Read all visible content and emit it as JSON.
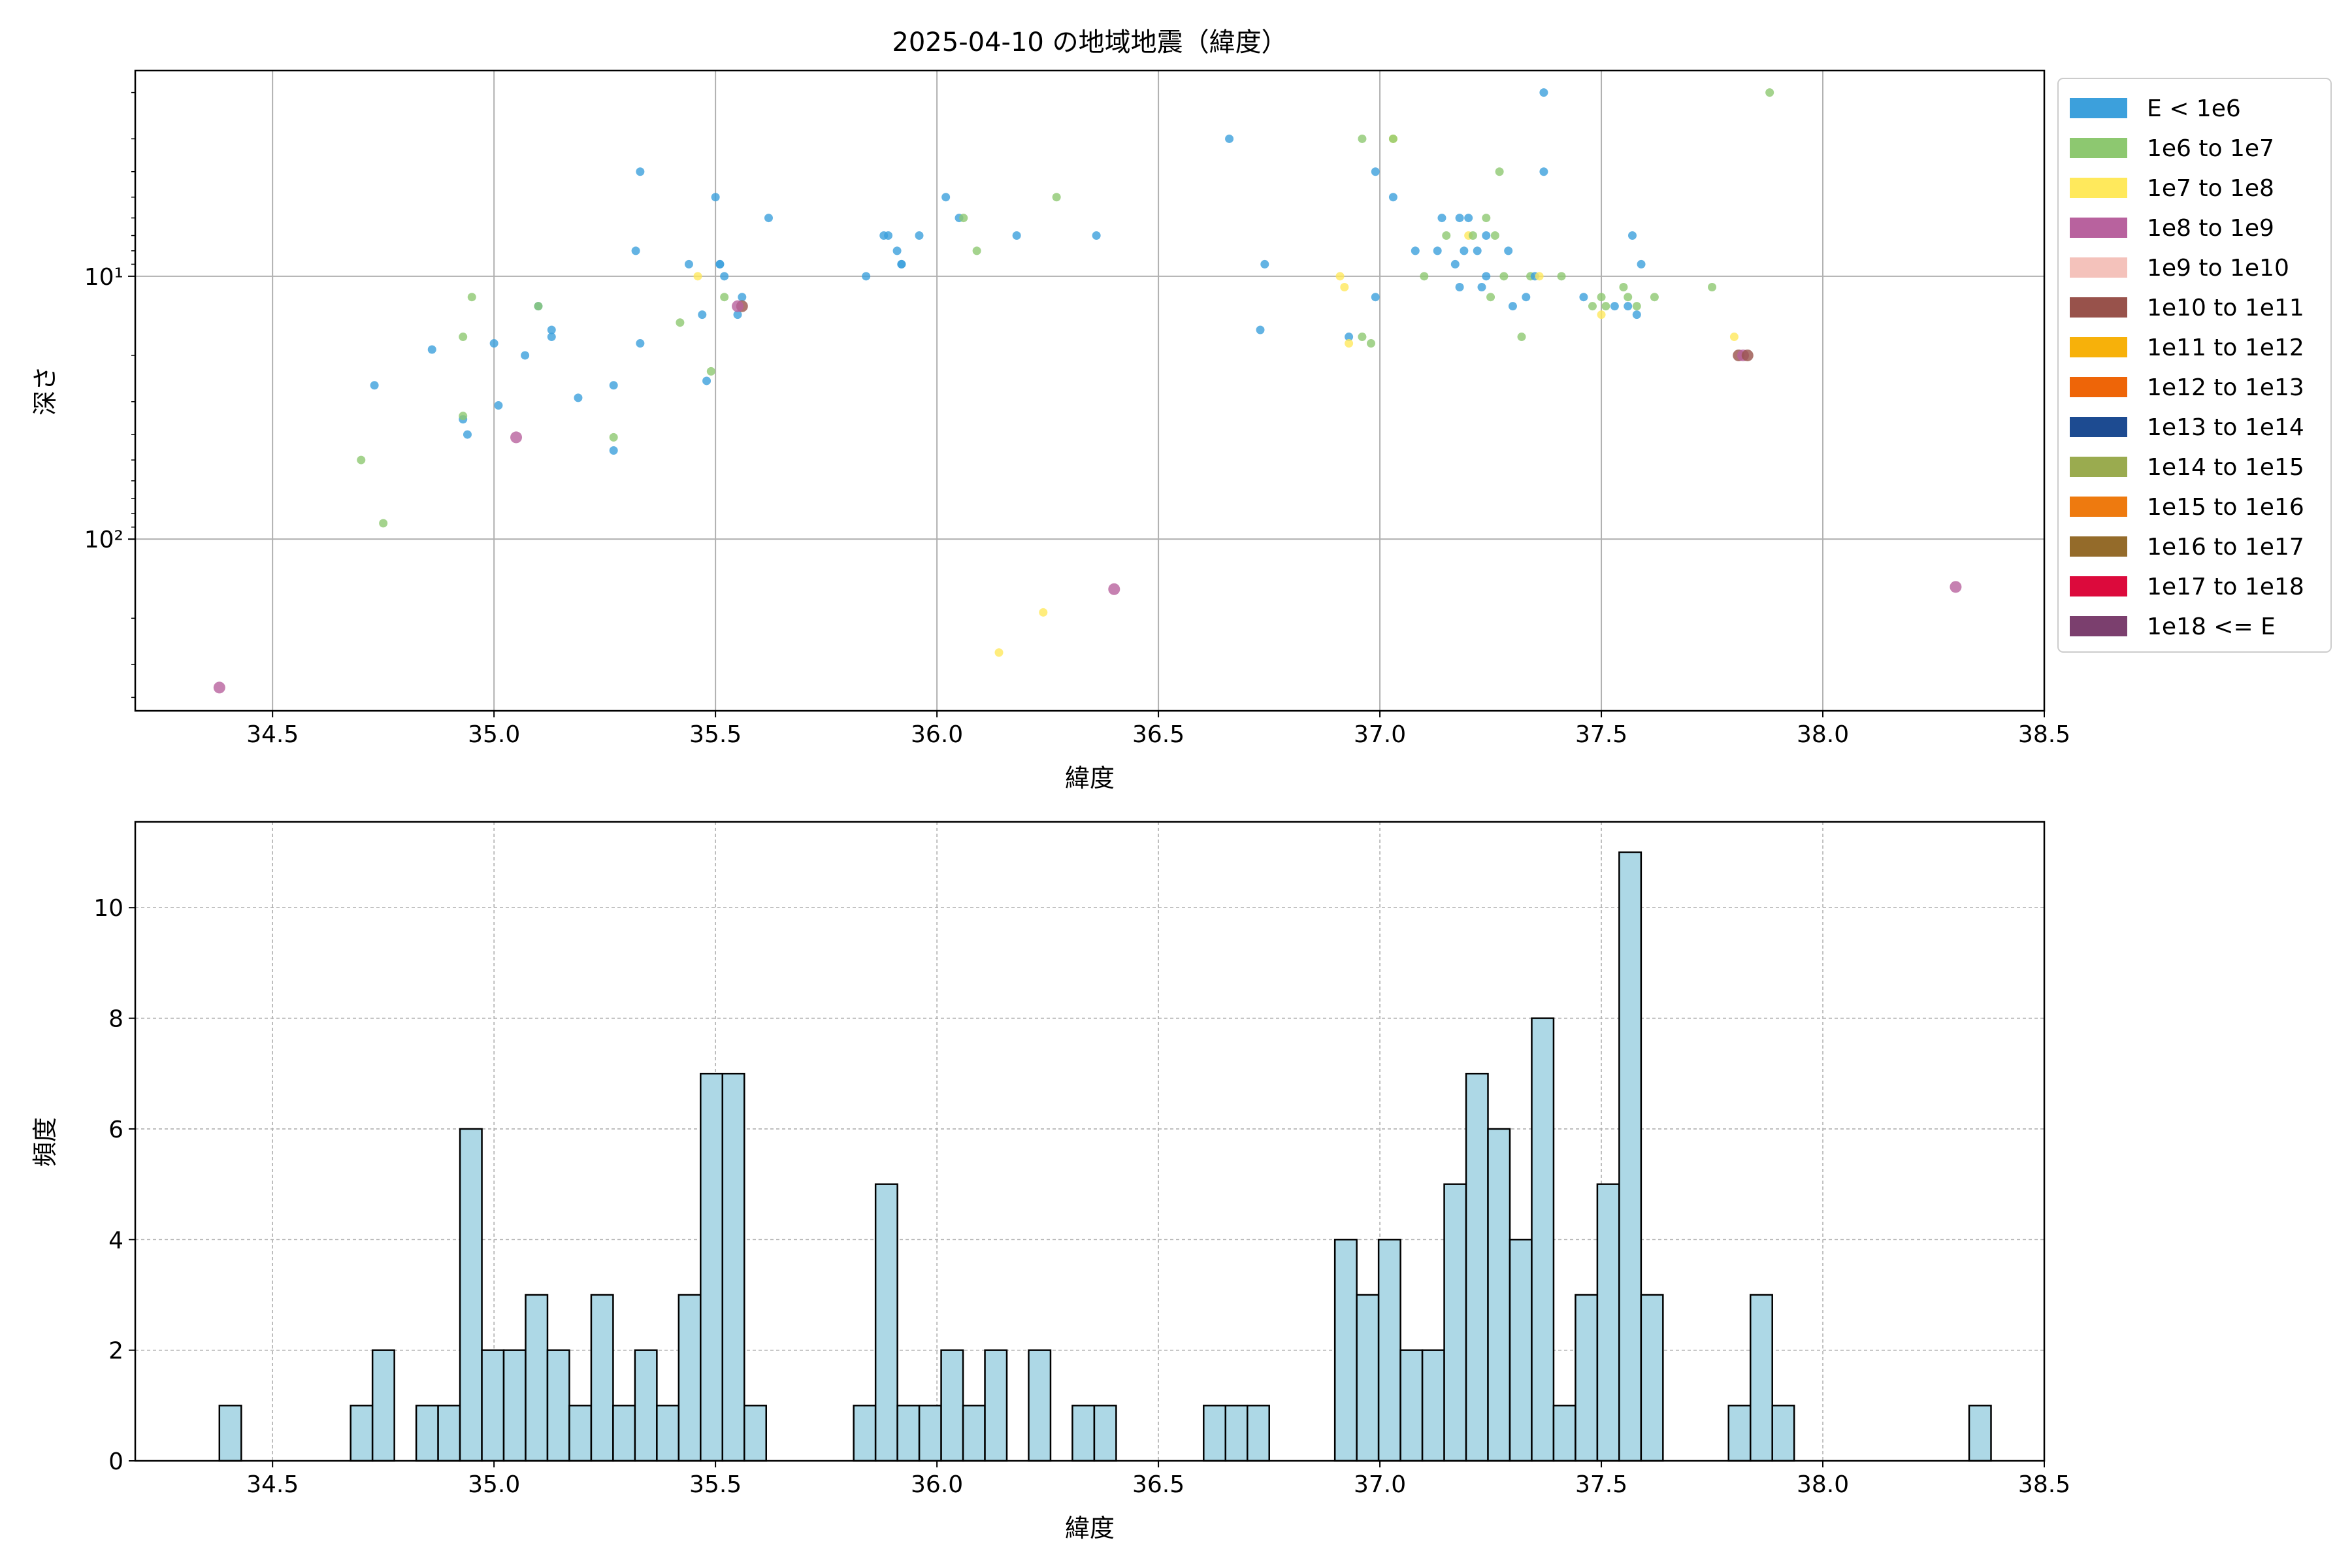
{
  "chart_data": [
    {
      "type": "scatter",
      "title": "2025-04-10 の地域地震（緯度）",
      "xlabel": "緯度",
      "ylabel": "深さ",
      "xlim": [
        34.19,
        38.5
      ],
      "ylim": [
        450,
        1.65
      ],
      "yscale": "log-inverted",
      "grid": true,
      "legend_placement": "outside-right",
      "x_ticks": [
        "34.5",
        "35.0",
        "35.5",
        "36.0",
        "36.5",
        "37.0",
        "37.5",
        "38.0",
        "38.5"
      ],
      "x_tick_values": [
        34.5,
        35.0,
        35.5,
        36.0,
        36.5,
        37.0,
        37.5,
        38.0,
        38.5
      ],
      "y_ticks": [
        {
          "value": 10,
          "label": "10¹"
        },
        {
          "value": 100,
          "label": "10²"
        }
      ],
      "legend": [
        {
          "label": "E < 1e6",
          "color": "#3ca0dc"
        },
        {
          "label": "1e6 to 1e7",
          "color": "#8dc870"
        },
        {
          "label": "1e7 to 1e8",
          "color": "#ffe95c"
        },
        {
          "label": "1e8 to 1e9",
          "color": "#b8629e"
        },
        {
          "label": "1e9 to 1e10",
          "color": "#f4c2bb"
        },
        {
          "label": "1e10 to 1e11",
          "color": "#98524b"
        },
        {
          "label": "1e11 to 1e12",
          "color": "#f7b10a"
        },
        {
          "label": "1e12 to 1e13",
          "color": "#ee6508"
        },
        {
          "label": "1e13 to 1e14",
          "color": "#1d4b91"
        },
        {
          "label": "1e14 to 1e15",
          "color": "#9aab4f"
        },
        {
          "label": "1e15 to 1e16",
          "color": "#ee7a0f"
        },
        {
          "label": "1e16 to 1e17",
          "color": "#946b2a"
        },
        {
          "label": "1e17 to 1e18",
          "color": "#dc0a3c"
        },
        {
          "label": "1e18 <= E",
          "color": "#7b3f6e"
        }
      ],
      "points": [
        {
          "x": 34.38,
          "y": 367,
          "c": 3
        },
        {
          "x": 34.7,
          "y": 50,
          "c": 1
        },
        {
          "x": 34.73,
          "y": 26,
          "c": 0
        },
        {
          "x": 34.75,
          "y": 87,
          "c": 1
        },
        {
          "x": 34.86,
          "y": 19,
          "c": 0
        },
        {
          "x": 34.93,
          "y": 17,
          "c": 1
        },
        {
          "x": 34.93,
          "y": 35,
          "c": 0
        },
        {
          "x": 34.93,
          "y": 34,
          "c": 1
        },
        {
          "x": 34.94,
          "y": 40,
          "c": 0
        },
        {
          "x": 34.95,
          "y": 12,
          "c": 1
        },
        {
          "x": 35.0,
          "y": 18,
          "c": 0
        },
        {
          "x": 35.01,
          "y": 31,
          "c": 0
        },
        {
          "x": 35.05,
          "y": 41,
          "c": 3
        },
        {
          "x": 35.07,
          "y": 20,
          "c": 0
        },
        {
          "x": 35.1,
          "y": 13,
          "c": 0
        },
        {
          "x": 35.1,
          "y": 13,
          "c": 1
        },
        {
          "x": 35.13,
          "y": 16,
          "c": 0
        },
        {
          "x": 35.13,
          "y": 17,
          "c": 0
        },
        {
          "x": 35.19,
          "y": 29,
          "c": 0
        },
        {
          "x": 35.27,
          "y": 26,
          "c": 0
        },
        {
          "x": 35.27,
          "y": 41,
          "c": 1
        },
        {
          "x": 35.27,
          "y": 46,
          "c": 0
        },
        {
          "x": 35.32,
          "y": 8,
          "c": 0
        },
        {
          "x": 35.33,
          "y": 4,
          "c": 0
        },
        {
          "x": 35.33,
          "y": 18,
          "c": 0
        },
        {
          "x": 35.42,
          "y": 15,
          "c": 1
        },
        {
          "x": 35.44,
          "y": 9,
          "c": 0
        },
        {
          "x": 35.46,
          "y": 10,
          "c": 2
        },
        {
          "x": 35.47,
          "y": 14,
          "c": 0
        },
        {
          "x": 35.48,
          "y": 25,
          "c": 0
        },
        {
          "x": 35.49,
          "y": 23,
          "c": 1
        },
        {
          "x": 35.5,
          "y": 5,
          "c": 0
        },
        {
          "x": 35.51,
          "y": 9,
          "c": 0
        },
        {
          "x": 35.51,
          "y": 9,
          "c": 0
        },
        {
          "x": 35.52,
          "y": 10,
          "c": 0
        },
        {
          "x": 35.52,
          "y": 12,
          "c": 1
        },
        {
          "x": 35.55,
          "y": 14,
          "c": 0
        },
        {
          "x": 35.56,
          "y": 12,
          "c": 0
        },
        {
          "x": 35.56,
          "y": 13,
          "c": 5
        },
        {
          "x": 35.55,
          "y": 13,
          "c": 3
        },
        {
          "x": 35.62,
          "y": 6,
          "c": 0
        },
        {
          "x": 35.84,
          "y": 10,
          "c": 0
        },
        {
          "x": 35.88,
          "y": 7,
          "c": 0
        },
        {
          "x": 35.89,
          "y": 7,
          "c": 0
        },
        {
          "x": 35.91,
          "y": 8,
          "c": 0
        },
        {
          "x": 35.92,
          "y": 9,
          "c": 0
        },
        {
          "x": 35.92,
          "y": 9,
          "c": 0
        },
        {
          "x": 35.96,
          "y": 7,
          "c": 0
        },
        {
          "x": 36.02,
          "y": 5,
          "c": 0
        },
        {
          "x": 36.05,
          "y": 6,
          "c": 0
        },
        {
          "x": 36.06,
          "y": 6,
          "c": 1
        },
        {
          "x": 36.09,
          "y": 8,
          "c": 1
        },
        {
          "x": 36.14,
          "y": 270,
          "c": 2
        },
        {
          "x": 36.18,
          "y": 7,
          "c": 0
        },
        {
          "x": 36.24,
          "y": 190,
          "c": 2
        },
        {
          "x": 36.27,
          "y": 5,
          "c": 1
        },
        {
          "x": 36.36,
          "y": 7,
          "c": 0
        },
        {
          "x": 36.4,
          "y": 155,
          "c": 3
        },
        {
          "x": 36.66,
          "y": 3,
          "c": 0
        },
        {
          "x": 36.73,
          "y": 16,
          "c": 0
        },
        {
          "x": 36.74,
          "y": 9,
          "c": 0
        },
        {
          "x": 36.91,
          "y": 10,
          "c": 2
        },
        {
          "x": 36.92,
          "y": 11,
          "c": 2
        },
        {
          "x": 36.93,
          "y": 17,
          "c": 0
        },
        {
          "x": 36.93,
          "y": 18,
          "c": 2
        },
        {
          "x": 36.96,
          "y": 3,
          "c": 1
        },
        {
          "x": 36.96,
          "y": 17,
          "c": 1
        },
        {
          "x": 36.98,
          "y": 18,
          "c": 1
        },
        {
          "x": 36.99,
          "y": 4,
          "c": 0
        },
        {
          "x": 36.99,
          "y": 12,
          "c": 0
        },
        {
          "x": 37.03,
          "y": 3,
          "c": 2
        },
        {
          "x": 37.03,
          "y": 3,
          "c": 1
        },
        {
          "x": 37.03,
          "y": 5,
          "c": 0
        },
        {
          "x": 37.08,
          "y": 8,
          "c": 0
        },
        {
          "x": 37.1,
          "y": 10,
          "c": 1
        },
        {
          "x": 37.13,
          "y": 8,
          "c": 0
        },
        {
          "x": 37.14,
          "y": 6,
          "c": 0
        },
        {
          "x": 37.15,
          "y": 7,
          "c": 1
        },
        {
          "x": 37.17,
          "y": 9,
          "c": 0
        },
        {
          "x": 37.18,
          "y": 6,
          "c": 0
        },
        {
          "x": 37.18,
          "y": 11,
          "c": 0
        },
        {
          "x": 37.19,
          "y": 8,
          "c": 0
        },
        {
          "x": 37.2,
          "y": 6,
          "c": 0
        },
        {
          "x": 37.2,
          "y": 7,
          "c": 2
        },
        {
          "x": 37.21,
          "y": 7,
          "c": 1
        },
        {
          "x": 37.22,
          "y": 8,
          "c": 0
        },
        {
          "x": 37.23,
          "y": 11,
          "c": 0
        },
        {
          "x": 37.24,
          "y": 7,
          "c": 0
        },
        {
          "x": 37.24,
          "y": 6,
          "c": 1
        },
        {
          "x": 37.24,
          "y": 10,
          "c": 0
        },
        {
          "x": 37.25,
          "y": 12,
          "c": 1
        },
        {
          "x": 37.26,
          "y": 7,
          "c": 1
        },
        {
          "x": 37.27,
          "y": 4,
          "c": 1
        },
        {
          "x": 37.28,
          "y": 10,
          "c": 1
        },
        {
          "x": 37.29,
          "y": 8,
          "c": 0
        },
        {
          "x": 37.3,
          "y": 13,
          "c": 0
        },
        {
          "x": 37.32,
          "y": 17,
          "c": 1
        },
        {
          "x": 37.33,
          "y": 12,
          "c": 0
        },
        {
          "x": 37.34,
          "y": 10,
          "c": 1
        },
        {
          "x": 37.35,
          "y": 10,
          "c": 0
        },
        {
          "x": 37.36,
          "y": 10,
          "c": 2
        },
        {
          "x": 37.37,
          "y": 2,
          "c": 0
        },
        {
          "x": 37.37,
          "y": 4,
          "c": 0
        },
        {
          "x": 37.41,
          "y": 10,
          "c": 1
        },
        {
          "x": 37.46,
          "y": 12,
          "c": 0
        },
        {
          "x": 37.48,
          "y": 13,
          "c": 1
        },
        {
          "x": 37.5,
          "y": 12,
          "c": 1
        },
        {
          "x": 37.5,
          "y": 14,
          "c": 2
        },
        {
          "x": 37.51,
          "y": 13,
          "c": 1
        },
        {
          "x": 37.53,
          "y": 13,
          "c": 0
        },
        {
          "x": 37.55,
          "y": 11,
          "c": 1
        },
        {
          "x": 37.56,
          "y": 12,
          "c": 1
        },
        {
          "x": 37.56,
          "y": 13,
          "c": 0
        },
        {
          "x": 37.57,
          "y": 7,
          "c": 0
        },
        {
          "x": 37.58,
          "y": 14,
          "c": 0
        },
        {
          "x": 37.58,
          "y": 13,
          "c": 1
        },
        {
          "x": 37.59,
          "y": 9,
          "c": 0
        },
        {
          "x": 37.62,
          "y": 12,
          "c": 1
        },
        {
          "x": 37.75,
          "y": 11,
          "c": 1
        },
        {
          "x": 37.8,
          "y": 17,
          "c": 2
        },
        {
          "x": 37.81,
          "y": 20,
          "c": 5
        },
        {
          "x": 37.82,
          "y": 20,
          "c": 3
        },
        {
          "x": 37.83,
          "y": 20,
          "c": 5
        },
        {
          "x": 37.88,
          "y": 2,
          "c": 1
        },
        {
          "x": 38.3,
          "y": 152,
          "c": 3
        }
      ]
    },
    {
      "type": "bar",
      "title": "",
      "xlabel": "緯度",
      "ylabel": "頻度",
      "xlim": [
        34.19,
        38.5
      ],
      "ylim": [
        0,
        11.55
      ],
      "grid": true,
      "bar_color": "#add8e6",
      "x_ticks": [
        "34.5",
        "35.0",
        "35.5",
        "36.0",
        "36.5",
        "37.0",
        "37.5",
        "38.0",
        "38.5"
      ],
      "x_tick_values": [
        34.5,
        35.0,
        35.5,
        36.0,
        36.5,
        37.0,
        37.5,
        38.0,
        38.5
      ],
      "y_ticks": [
        "0",
        "2",
        "4",
        "6",
        "8",
        "10"
      ],
      "y_tick_values": [
        0,
        2,
        4,
        6,
        8,
        10
      ],
      "bin_start": 34.38,
      "bin_width": 0.04938,
      "counts": [
        1,
        0,
        0,
        0,
        0,
        0,
        1,
        2,
        0,
        1,
        1,
        6,
        2,
        2,
        3,
        2,
        1,
        3,
        1,
        2,
        1,
        3,
        7,
        7,
        1,
        0,
        0,
        0,
        0,
        1,
        5,
        1,
        1,
        2,
        1,
        2,
        0,
        2,
        0,
        1,
        1,
        0,
        0,
        0,
        0,
        1,
        1,
        1,
        0,
        0,
        0,
        4,
        3,
        4,
        2,
        2,
        5,
        7,
        6,
        4,
        8,
        1,
        3,
        5,
        11,
        3,
        0,
        0,
        0,
        1,
        3,
        1,
        0,
        0,
        0,
        0,
        0,
        0,
        0,
        0,
        1
      ]
    }
  ]
}
